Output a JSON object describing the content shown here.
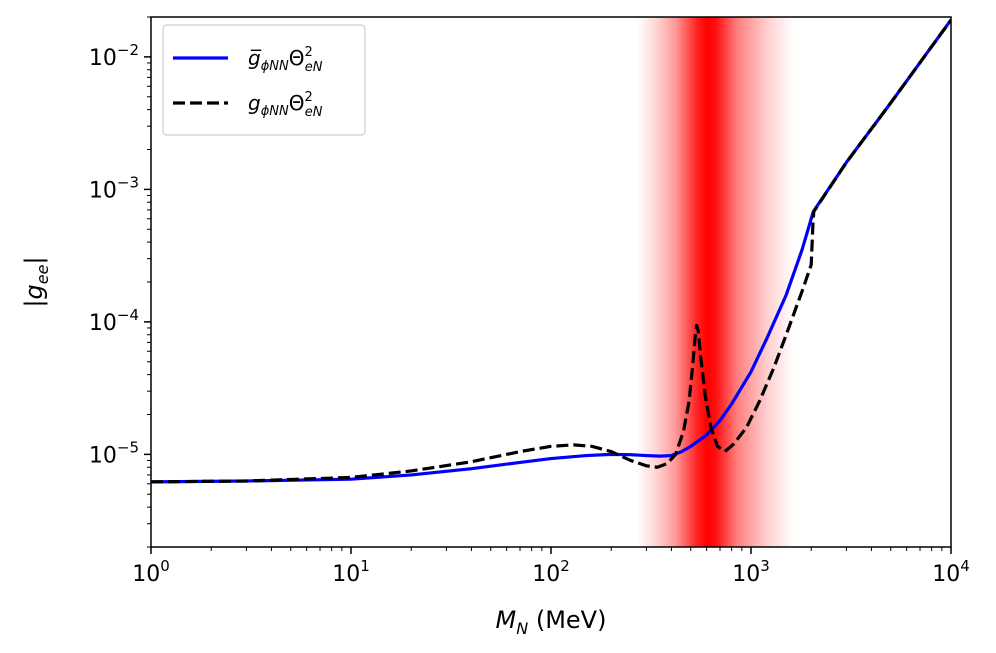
{
  "chart_data": {
    "type": "line",
    "x_scale": "log",
    "y_scale": "log",
    "xlim": [
      1,
      10000
    ],
    "ylim": [
      2e-06,
      0.02
    ],
    "x_ticks": [
      {
        "value": 1,
        "base": "10",
        "exp": "0"
      },
      {
        "value": 10,
        "base": "10",
        "exp": "1"
      },
      {
        "value": 100,
        "base": "10",
        "exp": "2"
      },
      {
        "value": 1000,
        "base": "10",
        "exp": "3"
      },
      {
        "value": 10000,
        "base": "10",
        "exp": "4"
      }
    ],
    "y_ticks": [
      {
        "value": 1e-05,
        "base": "10",
        "exp": "−5"
      },
      {
        "value": 0.0001,
        "base": "10",
        "exp": "−4"
      },
      {
        "value": 0.001,
        "base": "10",
        "exp": "−3"
      },
      {
        "value": 0.01,
        "base": "10",
        "exp": "−2"
      }
    ],
    "xlabel": {
      "main": "M",
      "sub": "N",
      "unit": " (MeV)"
    },
    "ylabel": {
      "open": "|g",
      "sub": "ee",
      "close": "|"
    },
    "legend_position": "upper-left",
    "band": {
      "x_lo": 270,
      "x_hi": 1650,
      "peak_x": 600,
      "color": "#ff0000"
    },
    "series": [
      {
        "name": "g̅ϕNNΘ²eN",
        "legend": {
          "g": "g̅",
          "sub1": "ϕNN",
          "theta": "Θ",
          "sup": "2",
          "sub2": "eN"
        },
        "color": "#0000ff",
        "style": "solid",
        "points": [
          [
            1,
            6.2e-06
          ],
          [
            3,
            6.3e-06
          ],
          [
            10,
            6.5e-06
          ],
          [
            20,
            7e-06
          ],
          [
            40,
            7.8e-06
          ],
          [
            70,
            8.7e-06
          ],
          [
            100,
            9.3e-06
          ],
          [
            150,
            9.8e-06
          ],
          [
            200,
            1e-05
          ],
          [
            250,
            9.95e-06
          ],
          [
            300,
            9.8e-06
          ],
          [
            350,
            9.7e-06
          ],
          [
            400,
            9.8e-06
          ],
          [
            450,
            1.05e-05
          ],
          [
            500,
            1.15e-05
          ],
          [
            600,
            1.4e-05
          ],
          [
            700,
            1.8e-05
          ],
          [
            800,
            2.4e-05
          ],
          [
            1000,
            4.2e-05
          ],
          [
            1200,
            7.5e-05
          ],
          [
            1500,
            0.00016
          ],
          [
            1800,
            0.00035
          ],
          [
            2050,
            0.00068
          ],
          [
            3000,
            0.0016
          ],
          [
            5000,
            0.0045
          ],
          [
            10000,
            0.019
          ]
        ]
      },
      {
        "name": "gϕNNΘ²eN",
        "legend": {
          "g": "g",
          "sub1": "ϕNN",
          "theta": "Θ",
          "sup": "2",
          "sub2": "eN"
        },
        "color": "#000000",
        "style": "dashed",
        "points": [
          [
            1,
            6.2e-06
          ],
          [
            3,
            6.3e-06
          ],
          [
            10,
            6.7e-06
          ],
          [
            20,
            7.5e-06
          ],
          [
            40,
            8.8e-06
          ],
          [
            70,
            1.05e-05
          ],
          [
            100,
            1.15e-05
          ],
          [
            130,
            1.18e-05
          ],
          [
            160,
            1.15e-05
          ],
          [
            200,
            1.05e-05
          ],
          [
            250,
            9e-06
          ],
          [
            300,
            8.2e-06
          ],
          [
            340,
            8e-06
          ],
          [
            380,
            8.5e-06
          ],
          [
            420,
            1e-05
          ],
          [
            460,
            1.5e-05
          ],
          [
            490,
            2.5e-05
          ],
          [
            510,
            4.5e-05
          ],
          [
            525,
            7.5e-05
          ],
          [
            535,
            9.4e-05
          ],
          [
            545,
            8.5e-05
          ],
          [
            560,
            5.5e-05
          ],
          [
            590,
            2.8e-05
          ],
          [
            630,
            1.6e-05
          ],
          [
            680,
            1.15e-05
          ],
          [
            740,
            1.05e-05
          ],
          [
            820,
            1.2e-05
          ],
          [
            950,
            1.6e-05
          ],
          [
            1100,
            2.5e-05
          ],
          [
            1300,
            4.5e-05
          ],
          [
            1500,
            8e-05
          ],
          [
            1800,
            0.00017
          ],
          [
            2000,
            0.00027
          ],
          [
            2040,
            0.00055
          ],
          [
            2060,
            0.00068
          ],
          [
            3000,
            0.0016
          ],
          [
            5000,
            0.0045
          ],
          [
            10000,
            0.019
          ]
        ]
      }
    ]
  }
}
